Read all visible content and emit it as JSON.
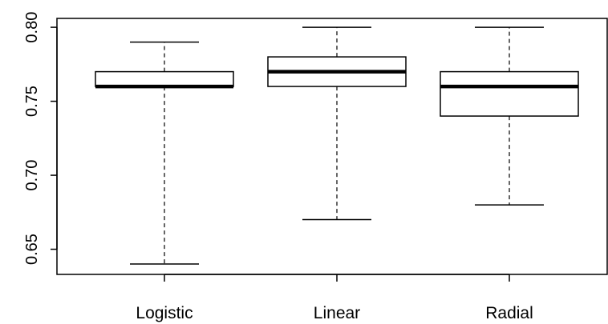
{
  "chart_data": {
    "type": "boxplot",
    "title": "",
    "xlabel": "",
    "ylabel": "",
    "ylim": [
      0.633,
      0.806
    ],
    "yticks": [
      "0.65",
      "0.70",
      "0.75",
      "0.80"
    ],
    "categories": [
      "Logistic",
      "Linear",
      "Radial"
    ],
    "boxes": [
      {
        "category": "Logistic",
        "min": 0.64,
        "q1": 0.76,
        "median": 0.76,
        "q3": 0.77,
        "max": 0.79
      },
      {
        "category": "Linear",
        "min": 0.67,
        "q1": 0.76,
        "median": 0.77,
        "q3": 0.78,
        "max": 0.8
      },
      {
        "category": "Radial",
        "min": 0.68,
        "q1": 0.74,
        "median": 0.76,
        "q3": 0.77,
        "max": 0.8
      }
    ],
    "grid": false,
    "legend": "none"
  }
}
